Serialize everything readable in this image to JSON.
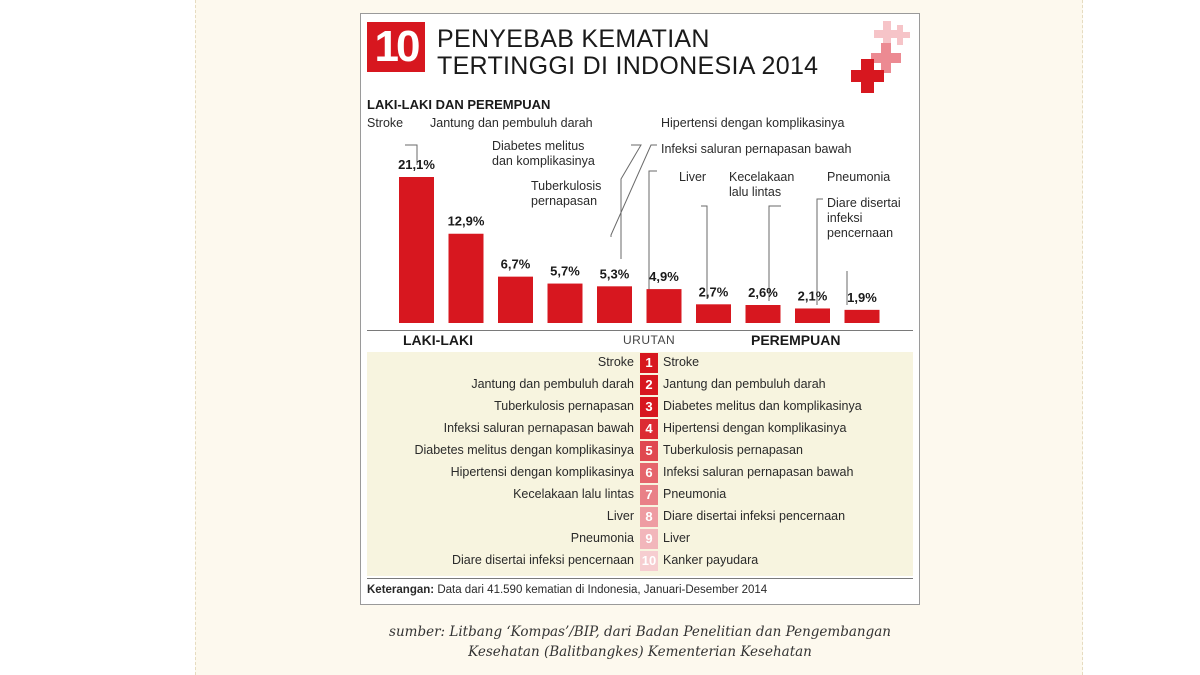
{
  "infographic": {
    "badge": "10",
    "title_line1": "PENYEBAB KEMATIAN",
    "title_line2": "TERTINGGI DI INDONESIA 2014",
    "subtitle": "LAKI-LAKI DAN PEREMPUAN",
    "colors": {
      "accent": "#d7171f",
      "pink_light": "#f4b6bb",
      "pink_mid": "#ea7c85",
      "row_bg": "#f7f4df"
    }
  },
  "chart_data": {
    "type": "bar",
    "title": "10 PENYEBAB KEMATIAN TERTINGGI DI INDONESIA 2014",
    "subtitle": "LAKI-LAKI DAN PEREMPUAN",
    "categories": [
      "Stroke",
      "Jantung dan pembuluh darah",
      "Diabetes melitus dan komplikasinya",
      "Tuberkulosis pernapasan",
      "Hipertensi dengan komplikasinya",
      "Infeksi saluran pernapasan bawah",
      "Liver",
      "Kecelakaan lalu lintas",
      "Pneumonia",
      "Diare disertai infeksi pencernaan"
    ],
    "category_labels": [
      [
        "Stroke"
      ],
      [
        "Jantung dan pembuluh darah"
      ],
      [
        "Diabetes melitus",
        "dan komplikasinya"
      ],
      [
        "Tuberkulosis",
        "pernapasan"
      ],
      [
        "Hipertensi dengan komplikasinya"
      ],
      [
        "Infeksi saluran pernapasan bawah"
      ],
      [
        "Liver"
      ],
      [
        "Kecelakaan",
        "lalu lintas"
      ],
      [
        "Pneumonia"
      ],
      [
        "Diare disertai",
        "infeksi",
        "pencernaan"
      ]
    ],
    "values": [
      21.1,
      12.9,
      6.7,
      5.7,
      5.3,
      4.9,
      2.7,
      2.6,
      2.1,
      1.9
    ],
    "value_labels": [
      "21,1%",
      "12,9%",
      "6,7%",
      "5,7%",
      "5,3%",
      "4,9%",
      "2,7%",
      "2,6%",
      "2,1%",
      "1,9%"
    ],
    "unit": "%",
    "ylim": [
      0,
      21.1
    ],
    "grid": false,
    "bar_color": "#d7171f"
  },
  "ranking": {
    "left_header": "LAKI-LAKI",
    "center_header": "URUTAN",
    "right_header": "PEREMPUAN",
    "rows": [
      {
        "rank": "1",
        "male": "Stroke",
        "female": "Stroke",
        "color": "#d7171f"
      },
      {
        "rank": "2",
        "male": "Jantung dan pembuluh darah",
        "female": "Jantung dan pembuluh darah",
        "color": "#d7171f"
      },
      {
        "rank": "3",
        "male": "Tuberkulosis pernapasan",
        "female": "Diabetes melitus dan komplikasinya",
        "color": "#d7171f"
      },
      {
        "rank": "4",
        "male": "Infeksi saluran pernapasan bawah",
        "female": "Hipertensi dengan komplikasinya",
        "color": "#dc2c33"
      },
      {
        "rank": "5",
        "male": "Diabetes melitus dengan komplikasinya",
        "female": "Tuberkulosis pernapasan",
        "color": "#e04850"
      },
      {
        "rank": "6",
        "male": "Hipertensi dengan komplikasinya",
        "female": "Infeksi saluran pernapasan bawah",
        "color": "#e5656c"
      },
      {
        "rank": "7",
        "male": "Kecelakaan lalu lintas",
        "female": "Pneumonia",
        "color": "#e98087"
      },
      {
        "rank": "8",
        "male": "Liver",
        "female": "Diare disertai infeksi pencernaan",
        "color": "#ee9ca2"
      },
      {
        "rank": "9",
        "male": "Pneumonia",
        "female": "Liver",
        "color": "#f2b6bb"
      },
      {
        "rank": "10",
        "male": "Diare disertai infeksi pencernaan",
        "female": "Kanker payudara",
        "color": "#f6cdd0"
      }
    ]
  },
  "footnote": {
    "label": "Keterangan:",
    "text": "Data dari 41.590 kematian di Indonesia, Januari-Desember 2014"
  },
  "caption": {
    "line1": "sumber: Litbang ‘Kompas’/BIP, dari Badan Penelitian dan Pengembangan",
    "line2": "Kesehatan (Balitbangkes) Kementerian Kesehatan"
  }
}
